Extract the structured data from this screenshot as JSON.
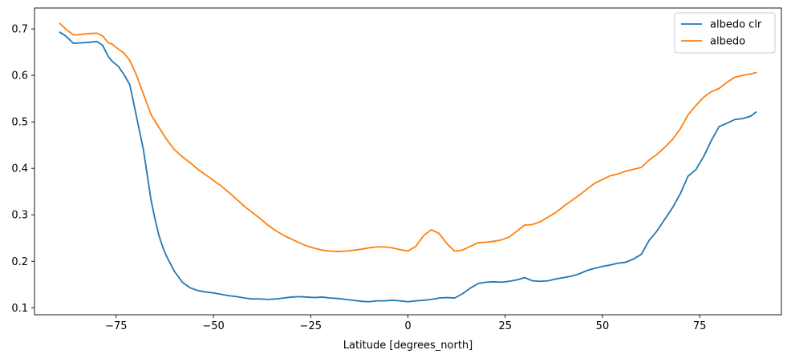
{
  "chart_data": {
    "type": "line",
    "title": "",
    "xlabel": "Latitude [degrees_north]",
    "ylabel": "",
    "xlim": [
      -96,
      96
    ],
    "ylim": [
      0.085,
      0.745
    ],
    "xticks": [
      -75,
      -50,
      -25,
      0,
      25,
      50,
      75
    ],
    "xtick_labels": [
      "−75",
      "−50",
      "−25",
      "0",
      "25",
      "50",
      "75"
    ],
    "yticks": [
      0.1,
      0.2,
      0.3,
      0.4,
      0.5,
      0.6,
      0.7
    ],
    "ytick_labels": [
      "0.1",
      "0.2",
      "0.3",
      "0.4",
      "0.5",
      "0.6",
      "0.7"
    ],
    "grid": false,
    "legend_position": "top-right",
    "series": [
      {
        "name": "albedo clr",
        "color": "#1f77b4",
        "x": [
          -89.5,
          -88,
          -86,
          -84,
          -82,
          -80,
          -78.5,
          -77,
          -76,
          -74.5,
          -73,
          -71.5,
          -70,
          -68,
          -66,
          -65,
          -64,
          -63,
          -62,
          -60,
          -58,
          -56,
          -54,
          -52,
          -50,
          -48,
          -46,
          -44,
          -42,
          -40,
          -38,
          -36,
          -34,
          -32,
          -30,
          -28,
          -26,
          -24,
          -22,
          -20,
          -18,
          -16,
          -14,
          -12,
          -10,
          -8,
          -6,
          -4,
          -2,
          0,
          2,
          4,
          6,
          8,
          10,
          12,
          14,
          16,
          18,
          20,
          22,
          24,
          26,
          28,
          30,
          32,
          34,
          36,
          38,
          40,
          42,
          44,
          46,
          48,
          50,
          52,
          54,
          56,
          58,
          60,
          62,
          64,
          66,
          68,
          70,
          72,
          74,
          76,
          78,
          80,
          82,
          84,
          86,
          88,
          89.5
        ],
        "y": [
          0.693,
          0.685,
          0.669,
          0.67,
          0.671,
          0.673,
          0.665,
          0.64,
          0.63,
          0.62,
          0.602,
          0.58,
          0.52,
          0.44,
          0.33,
          0.29,
          0.255,
          0.23,
          0.21,
          0.178,
          0.155,
          0.143,
          0.137,
          0.134,
          0.132,
          0.129,
          0.126,
          0.124,
          0.121,
          0.119,
          0.119,
          0.118,
          0.119,
          0.121,
          0.123,
          0.124,
          0.123,
          0.122,
          0.123,
          0.121,
          0.12,
          0.118,
          0.116,
          0.114,
          0.113,
          0.115,
          0.115,
          0.116,
          0.115,
          0.113,
          0.115,
          0.116,
          0.118,
          0.121,
          0.122,
          0.121,
          0.13,
          0.142,
          0.152,
          0.155,
          0.156,
          0.155,
          0.157,
          0.16,
          0.165,
          0.158,
          0.157,
          0.158,
          0.162,
          0.165,
          0.168,
          0.173,
          0.18,
          0.185,
          0.189,
          0.192,
          0.196,
          0.198,
          0.205,
          0.215,
          0.245,
          0.265,
          0.29,
          0.315,
          0.345,
          0.383,
          0.397,
          0.425,
          0.46,
          0.49,
          0.497,
          0.505,
          0.507,
          0.512,
          0.521
        ]
      },
      {
        "name": "albedo",
        "color": "#ff7f0e",
        "x": [
          -89.5,
          -88,
          -86,
          -84,
          -82,
          -80,
          -78.5,
          -77,
          -76,
          -74.5,
          -73,
          -71.5,
          -70,
          -68,
          -66,
          -64,
          -62,
          -60,
          -58,
          -56,
          -54,
          -52,
          -50,
          -48,
          -46,
          -44,
          -42,
          -40,
          -38,
          -36,
          -34,
          -32,
          -30,
          -28,
          -26,
          -24,
          -22,
          -20,
          -18,
          -16,
          -14,
          -12,
          -10,
          -8,
          -6,
          -4,
          -2,
          0,
          2,
          4,
          6,
          8,
          10,
          12,
          14,
          16,
          18,
          20,
          22,
          24,
          26,
          28,
          30,
          32,
          34,
          36,
          38,
          40,
          42,
          44,
          46,
          48,
          50,
          52,
          54,
          56,
          58,
          60,
          62,
          64,
          66,
          68,
          70,
          72,
          74,
          76,
          78,
          80,
          82,
          84,
          86,
          88,
          89.5
        ],
        "y": [
          0.712,
          0.7,
          0.687,
          0.688,
          0.69,
          0.691,
          0.685,
          0.67,
          0.667,
          0.657,
          0.648,
          0.632,
          0.605,
          0.56,
          0.515,
          0.488,
          0.462,
          0.44,
          0.425,
          0.412,
          0.398,
          0.386,
          0.374,
          0.362,
          0.348,
          0.333,
          0.318,
          0.305,
          0.292,
          0.278,
          0.266,
          0.256,
          0.248,
          0.24,
          0.233,
          0.228,
          0.224,
          0.222,
          0.221,
          0.222,
          0.224,
          0.226,
          0.229,
          0.231,
          0.231,
          0.229,
          0.225,
          0.222,
          0.232,
          0.255,
          0.268,
          0.26,
          0.238,
          0.222,
          0.224,
          0.232,
          0.24,
          0.241,
          0.243,
          0.246,
          0.252,
          0.265,
          0.278,
          0.279,
          0.285,
          0.295,
          0.305,
          0.318,
          0.33,
          0.342,
          0.355,
          0.368,
          0.376,
          0.384,
          0.388,
          0.394,
          0.398,
          0.402,
          0.418,
          0.43,
          0.445,
          0.462,
          0.485,
          0.515,
          0.535,
          0.553,
          0.565,
          0.572,
          0.585,
          0.596,
          0.6,
          0.603,
          0.606
        ]
      }
    ]
  }
}
